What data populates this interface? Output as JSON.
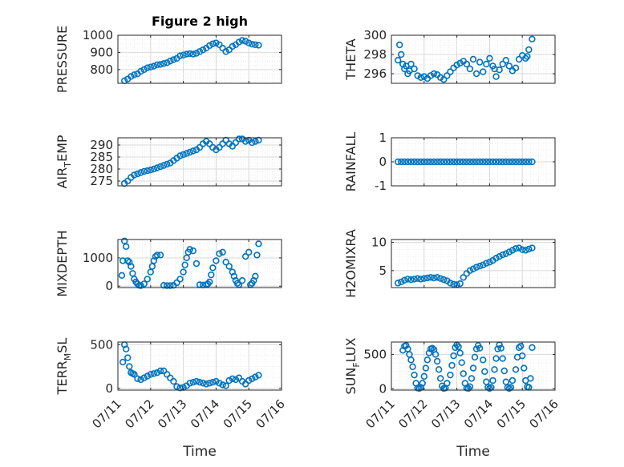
{
  "chart_data": [
    {
      "type": "scatter",
      "title": "Figure 2 high",
      "ylabel": "PRESSURE",
      "ylabel_main": "PRESSURE",
      "ylabel_sub": "",
      "ylabel_tail": "",
      "ylim": [
        720,
        1000
      ],
      "yticks": [
        800,
        900,
        1000
      ],
      "yticklabels": [
        "800",
        "900",
        "1000"
      ],
      "xlim": [
        "07/11",
        "07/16"
      ],
      "xticks": [
        "07/11",
        "07/12",
        "07/13",
        "07/14",
        "07/15",
        "07/16"
      ],
      "show_xticklabels": false,
      "xlabel": "",
      "grid": true,
      "x": [
        0.2,
        0.3,
        0.4,
        0.5,
        0.6,
        0.7,
        0.8,
        0.9,
        1.0,
        1.1,
        1.2,
        1.3,
        1.4,
        1.5,
        1.6,
        1.7,
        1.8,
        1.9,
        2.0,
        2.1,
        2.2,
        2.3,
        2.4,
        2.5,
        2.6,
        2.7,
        2.8,
        2.9,
        3.0,
        3.1,
        3.2,
        3.3,
        3.4,
        3.5,
        3.6,
        3.7,
        3.8,
        3.9,
        4.0,
        4.1,
        4.2,
        4.3
      ],
      "y": [
        735,
        745,
        760,
        770,
        775,
        790,
        800,
        810,
        815,
        820,
        828,
        830,
        835,
        840,
        850,
        858,
        865,
        880,
        885,
        890,
        893,
        890,
        895,
        905,
        915,
        925,
        940,
        950,
        955,
        945,
        925,
        905,
        915,
        935,
        945,
        960,
        970,
        965,
        955,
        948,
        945,
        942
      ]
    },
    {
      "type": "scatter",
      "ylabel": "THETA",
      "ylabel_main": "THETA",
      "ylabel_sub": "",
      "ylabel_tail": "",
      "ylim": [
        295,
        300
      ],
      "yticks": [
        296,
        298,
        300
      ],
      "yticklabels": [
        "296",
        "298",
        "300"
      ],
      "xlim": [
        "07/11",
        "07/16"
      ],
      "xticks": [
        "07/11",
        "07/12",
        "07/13",
        "07/14",
        "07/15",
        "07/16"
      ],
      "show_xticklabels": false,
      "xlabel": "",
      "grid": true,
      "x": [
        0.2,
        0.25,
        0.3,
        0.35,
        0.4,
        0.45,
        0.5,
        0.55,
        0.6,
        0.7,
        0.8,
        0.9,
        1.0,
        1.1,
        1.2,
        1.3,
        1.4,
        1.5,
        1.6,
        1.7,
        1.8,
        1.9,
        2.0,
        2.1,
        2.2,
        2.3,
        2.4,
        2.5,
        2.6,
        2.7,
        2.8,
        2.9,
        3.0,
        3.1,
        3.15,
        3.2,
        3.3,
        3.4,
        3.5,
        3.6,
        3.7,
        3.8,
        3.9,
        4.0,
        4.1,
        4.15,
        4.2,
        4.3
      ],
      "y": [
        297.4,
        299.0,
        298.0,
        297.0,
        296.5,
        296.8,
        296.0,
        296.3,
        297.0,
        296.5,
        295.8,
        295.6,
        295.7,
        295.5,
        295.8,
        296.0,
        295.9,
        295.6,
        295.4,
        295.8,
        296.2,
        296.6,
        296.9,
        297.1,
        297.3,
        297.0,
        296.5,
        297.5,
        296.0,
        297.2,
        296.2,
        297.0,
        297.6,
        296.8,
        296.5,
        295.7,
        296.4,
        297.0,
        297.4,
        296.8,
        296.3,
        296.6,
        297.5,
        297.9,
        297.6,
        297.8,
        298.5,
        299.6
      ]
    },
    {
      "type": "scatter",
      "ylabel": "AIR_TEMP",
      "ylabel_main": "AIR",
      "ylabel_sub": "T",
      "ylabel_tail": "EMP",
      "ylim": [
        273,
        293
      ],
      "yticks": [
        275,
        280,
        285,
        290
      ],
      "yticklabels": [
        "275",
        "280",
        "285",
        "290"
      ],
      "xlim": [
        "07/11",
        "07/16"
      ],
      "xticks": [
        "07/11",
        "07/12",
        "07/13",
        "07/14",
        "07/15",
        "07/16"
      ],
      "show_xticklabels": false,
      "xlabel": "",
      "grid": true,
      "x": [
        0.2,
        0.3,
        0.4,
        0.5,
        0.6,
        0.7,
        0.8,
        0.9,
        1.0,
        1.1,
        1.2,
        1.3,
        1.4,
        1.5,
        1.6,
        1.7,
        1.8,
        1.9,
        2.0,
        2.1,
        2.2,
        2.3,
        2.4,
        2.5,
        2.6,
        2.7,
        2.8,
        2.9,
        3.0,
        3.1,
        3.2,
        3.3,
        3.4,
        3.5,
        3.6,
        3.7,
        3.8,
        3.9,
        4.0,
        4.1,
        4.2,
        4.3
      ],
      "y": [
        274,
        275,
        276.5,
        277.5,
        278,
        278.5,
        279,
        279.3,
        279.6,
        280,
        280.5,
        281,
        281.5,
        282,
        282.5,
        283.5,
        284.5,
        285.5,
        286,
        286.5,
        287,
        287.5,
        288,
        289,
        290.5,
        291.5,
        290.5,
        289,
        288,
        289,
        290.5,
        292,
        290.5,
        289.5,
        291,
        292.5,
        292.5,
        291.5,
        292,
        291,
        291.5,
        292
      ]
    },
    {
      "type": "scatter",
      "ylabel": "RAINFALL",
      "ylabel_main": "RAINFALL",
      "ylabel_sub": "",
      "ylabel_tail": "",
      "ylim": [
        -1,
        1
      ],
      "yticks": [
        -1,
        0,
        1
      ],
      "yticklabels": [
        "-1",
        "0",
        "1"
      ],
      "xlim": [
        "07/11",
        "07/16"
      ],
      "xticks": [
        "07/11",
        "07/12",
        "07/13",
        "07/14",
        "07/15",
        "07/16"
      ],
      "show_xticklabels": false,
      "xlabel": "",
      "grid": true,
      "x": [
        0.2,
        0.3,
        0.4,
        0.5,
        0.6,
        0.7,
        0.8,
        0.9,
        1.0,
        1.1,
        1.2,
        1.3,
        1.4,
        1.5,
        1.6,
        1.7,
        1.8,
        1.9,
        2.0,
        2.1,
        2.2,
        2.3,
        2.4,
        2.5,
        2.6,
        2.7,
        2.8,
        2.9,
        3.0,
        3.1,
        3.2,
        3.3,
        3.4,
        3.5,
        3.6,
        3.7,
        3.8,
        3.9,
        4.0,
        4.1,
        4.2,
        4.3
      ],
      "y": [
        0,
        0,
        0,
        0,
        0,
        0,
        0,
        0,
        0,
        0,
        0,
        0,
        0,
        0,
        0,
        0,
        0,
        0,
        0,
        0,
        0,
        0,
        0,
        0,
        0,
        0,
        0,
        0,
        0,
        0,
        0,
        0,
        0,
        0,
        0,
        0,
        0,
        0,
        0,
        0,
        0,
        0
      ]
    },
    {
      "type": "scatter",
      "ylabel": "MIXDEPTH",
      "ylabel_main": "MIXDEPTH",
      "ylabel_sub": "",
      "ylabel_tail": "",
      "ylim": [
        -50,
        1650
      ],
      "yticks": [
        0,
        1000
      ],
      "yticklabels": [
        "0",
        "1000"
      ],
      "xlim": [
        "07/11",
        "07/16"
      ],
      "xticks": [
        "07/11",
        "07/12",
        "07/13",
        "07/14",
        "07/15",
        "07/16"
      ],
      "show_xticklabels": false,
      "xlabel": "",
      "grid": true,
      "x": [
        0.12,
        0.15,
        0.2,
        0.25,
        0.3,
        0.35,
        0.4,
        0.45,
        0.5,
        0.55,
        0.6,
        0.65,
        0.7,
        0.8,
        0.9,
        1.0,
        1.05,
        1.1,
        1.15,
        1.2,
        1.3,
        1.4,
        1.5,
        1.6,
        1.7,
        1.8,
        1.9,
        2.0,
        2.05,
        2.1,
        2.15,
        2.2,
        2.3,
        2.4,
        2.5,
        2.6,
        2.7,
        2.75,
        2.8,
        2.85,
        2.9,
        3.0,
        3.1,
        3.2,
        3.3,
        3.4,
        3.5,
        3.55,
        3.6,
        3.65,
        3.7,
        3.8,
        3.9,
        4.0,
        4.05,
        4.1,
        4.15,
        4.2,
        4.25,
        4.3
      ],
      "y": [
        380,
        900,
        1600,
        1400,
        900,
        850,
        700,
        450,
        250,
        150,
        80,
        30,
        20,
        80,
        250,
        500,
        700,
        900,
        1050,
        1100,
        1100,
        30,
        20,
        20,
        30,
        120,
        250,
        500,
        750,
        1000,
        1200,
        1300,
        1250,
        800,
        50,
        40,
        50,
        80,
        150,
        400,
        650,
        900,
        1150,
        1200,
        850,
        700,
        500,
        350,
        200,
        100,
        50,
        200,
        1050,
        1200,
        50,
        100,
        200,
        350,
        1100,
        1500
      ]
    },
    {
      "type": "scatter",
      "ylabel": "H2OMIXRA",
      "ylabel_main": "H2OMIXRA",
      "ylabel_sub": "",
      "ylabel_tail": "",
      "ylim": [
        2,
        10.5
      ],
      "yticks": [
        5,
        10
      ],
      "yticklabels": [
        "5",
        "10"
      ],
      "xlim": [
        "07/11",
        "07/16"
      ],
      "xticks": [
        "07/11",
        "07/12",
        "07/13",
        "07/14",
        "07/15",
        "07/16"
      ],
      "show_xticklabels": false,
      "xlabel": "",
      "grid": true,
      "x": [
        0.2,
        0.3,
        0.4,
        0.5,
        0.6,
        0.7,
        0.8,
        0.9,
        1.0,
        1.1,
        1.2,
        1.3,
        1.4,
        1.5,
        1.6,
        1.7,
        1.8,
        1.9,
        2.0,
        2.1,
        2.2,
        2.3,
        2.4,
        2.5,
        2.6,
        2.7,
        2.8,
        2.9,
        3.0,
        3.1,
        3.2,
        3.3,
        3.4,
        3.5,
        3.6,
        3.7,
        3.8,
        3.9,
        4.0,
        4.1,
        4.2,
        4.3
      ],
      "y": [
        2.8,
        3.0,
        3.3,
        3.5,
        3.4,
        3.5,
        3.6,
        3.5,
        3.6,
        3.7,
        3.8,
        3.7,
        3.8,
        3.6,
        3.4,
        3.2,
        2.8,
        2.6,
        2.5,
        2.7,
        3.8,
        4.5,
        5.0,
        5.3,
        5.6,
        5.8,
        6.0,
        6.3,
        6.5,
        6.8,
        7.2,
        7.5,
        7.8,
        8.0,
        8.3,
        8.6,
        8.9,
        9.0,
        8.7,
        8.6,
        8.8,
        9.0
      ]
    },
    {
      "type": "scatter",
      "ylabel": "TERR_MSL",
      "ylabel_main": "TERR",
      "ylabel_sub": "M",
      "ylabel_tail": "SL",
      "ylim": [
        -20,
        530
      ],
      "yticks": [
        0,
        500
      ],
      "yticklabels": [
        "0",
        "500"
      ],
      "xlim": [
        "07/11",
        "07/16"
      ],
      "xticks": [
        "07/11",
        "07/12",
        "07/13",
        "07/14",
        "07/15",
        "07/16"
      ],
      "show_xticklabels": true,
      "xlabel": "Time",
      "grid": true,
      "x": [
        0.15,
        0.2,
        0.25,
        0.3,
        0.35,
        0.4,
        0.45,
        0.5,
        0.6,
        0.7,
        0.8,
        0.9,
        1.0,
        1.1,
        1.2,
        1.3,
        1.4,
        1.5,
        1.6,
        1.7,
        1.8,
        1.9,
        2.0,
        2.1,
        2.2,
        2.3,
        2.4,
        2.5,
        2.6,
        2.7,
        2.8,
        2.9,
        3.0,
        3.1,
        3.2,
        3.3,
        3.4,
        3.5,
        3.6,
        3.7,
        3.8,
        3.9,
        4.0,
        4.1,
        4.2,
        4.3
      ],
      "y": [
        300,
        500,
        450,
        350,
        250,
        180,
        170,
        160,
        110,
        100,
        120,
        140,
        160,
        170,
        180,
        200,
        200,
        160,
        120,
        80,
        20,
        5,
        10,
        30,
        60,
        70,
        80,
        70,
        60,
        50,
        60,
        70,
        80,
        60,
        40,
        30,
        90,
        110,
        100,
        120,
        80,
        50,
        90,
        110,
        130,
        150
      ]
    },
    {
      "type": "scatter",
      "ylabel": "SUN_FLUX",
      "ylabel_main": "SUN",
      "ylabel_sub": "F",
      "ylabel_tail": "LUX",
      "ylim": [
        -20,
        680
      ],
      "yticks": [
        0,
        500
      ],
      "yticklabels": [
        "0",
        "500"
      ],
      "xlim": [
        "07/11",
        "07/16"
      ],
      "xticks": [
        "07/11",
        "07/12",
        "07/13",
        "07/14",
        "07/15",
        "07/16"
      ],
      "show_xticklabels": true,
      "xlabel": "Time",
      "grid": true,
      "x": [
        0.35,
        0.4,
        0.45,
        0.5,
        0.55,
        0.6,
        0.65,
        0.7,
        0.75,
        0.8,
        0.85,
        0.9,
        0.95,
        1.0,
        1.05,
        1.1,
        1.15,
        1.2,
        1.25,
        1.3,
        1.35,
        1.4,
        1.45,
        1.5,
        1.55,
        1.6,
        1.65,
        1.7,
        1.8,
        1.85,
        1.9,
        1.95,
        2.0,
        2.05,
        2.1,
        2.15,
        2.2,
        2.25,
        2.3,
        2.35,
        2.4,
        2.45,
        2.5,
        2.55,
        2.6,
        2.65,
        2.7,
        2.8,
        2.85,
        2.9,
        2.95,
        3.0,
        3.05,
        3.1,
        3.15,
        3.2,
        3.25,
        3.3,
        3.35,
        3.4,
        3.45,
        3.5,
        3.55,
        3.6,
        3.65,
        3.7,
        3.8,
        3.85,
        3.9,
        3.95,
        4.0,
        4.05,
        4.1,
        4.15,
        4.2,
        4.25,
        4.3
      ],
      "y": [
        560,
        620,
        630,
        580,
        500,
        420,
        320,
        200,
        80,
        10,
        5,
        20,
        80,
        180,
        300,
        420,
        520,
        580,
        590,
        570,
        500,
        400,
        280,
        150,
        40,
        5,
        10,
        80,
        200,
        340,
        480,
        600,
        640,
        610,
        520,
        380,
        220,
        80,
        10,
        5,
        30,
        150,
        300,
        460,
        580,
        630,
        590,
        420,
        250,
        100,
        20,
        5,
        20,
        120,
        280,
        440,
        580,
        640,
        590,
        440,
        260,
        100,
        20,
        5,
        20,
        120,
        280,
        460,
        600,
        620,
        480,
        300,
        120,
        30,
        20,
        150,
        600
      ]
    }
  ]
}
